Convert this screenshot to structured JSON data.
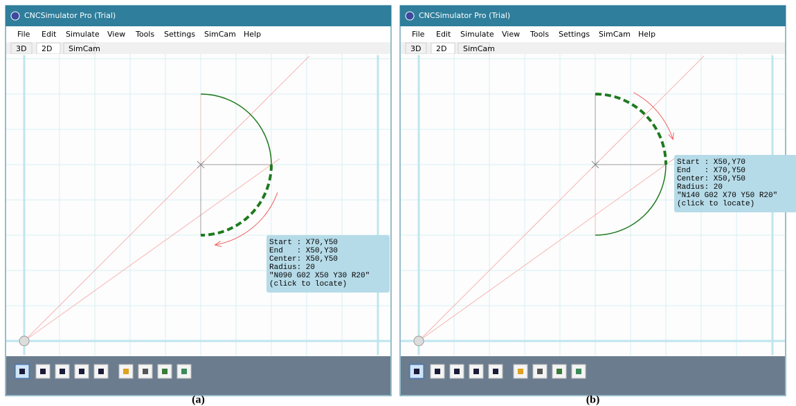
{
  "window": {
    "title": "CNCSimulator Pro (Trial)",
    "menu": [
      "File",
      "Edit",
      "Simulate",
      "View",
      "Tools",
      "Settings",
      "SimCam",
      "Help"
    ],
    "tabs": [
      "3D",
      "2D",
      "SimCam"
    ]
  },
  "panels": [
    {
      "caption": "(a)",
      "info": [
        "Start : X70,Y50",
        "End   : X50,Y30",
        "Center: X50,Y50",
        "Radius: 20",
        "\"N090 G02 X50 Y30 R20\"",
        "(click to locate)"
      ]
    },
    {
      "caption": "(b)",
      "info": [
        "Start : X50,Y70",
        "End   : X70,Y50",
        "Center: X50,Y50",
        "Radius: 20",
        "\"N140 G02 X70 Y50 R20\"",
        "(click to locate)"
      ]
    }
  ]
}
